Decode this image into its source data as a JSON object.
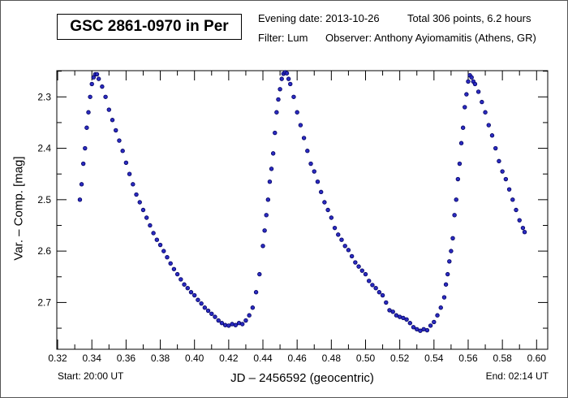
{
  "header": {
    "title": "GSC 2861-0970 in Per",
    "evening_date": "Evening date: 2013-10-26",
    "total": "Total 306 points, 6.2 hours",
    "filter": "Filter: Lum",
    "observer": "Observer: Anthony Ayiomamitis (Athens, GR)"
  },
  "footer": {
    "start": "Start: 20:00 UT",
    "end": "End: 02:14 UT"
  },
  "colors": {
    "point_fill": "#2b2bc0",
    "point_stroke": "#000060",
    "axis": "#000000"
  },
  "chart_data": {
    "type": "scatter",
    "title": "GSC 2861-0970 in Per",
    "xlabel": "JD – 2456592  (geocentric)",
    "ylabel": "Var. – Comp. [mag]",
    "xlim": [
      0.3195,
      0.6065
    ],
    "ylim": [
      2.249,
      2.791
    ],
    "y_inverted": true,
    "grid": false,
    "xticks": [
      "0.32",
      "0.34",
      "0.36",
      "0.38",
      "0.40",
      "0.42",
      "0.44",
      "0.46",
      "0.48",
      "0.50",
      "0.52",
      "0.54",
      "0.56",
      "0.58",
      "0.60"
    ],
    "yticks": [
      "2.3",
      "2.4",
      "2.5",
      "2.6",
      "2.7"
    ],
    "x": [
      0.333,
      0.334,
      0.335,
      0.336,
      0.337,
      0.338,
      0.339,
      0.34,
      0.341,
      0.342,
      0.343,
      0.344,
      0.346,
      0.348,
      0.35,
      0.352,
      0.354,
      0.356,
      0.358,
      0.36,
      0.362,
      0.364,
      0.366,
      0.368,
      0.37,
      0.372,
      0.374,
      0.376,
      0.378,
      0.38,
      0.382,
      0.384,
      0.386,
      0.388,
      0.39,
      0.392,
      0.394,
      0.396,
      0.398,
      0.4,
      0.402,
      0.404,
      0.406,
      0.408,
      0.41,
      0.412,
      0.414,
      0.416,
      0.418,
      0.42,
      0.422,
      0.424,
      0.426,
      0.428,
      0.43,
      0.432,
      0.434,
      0.436,
      0.438,
      0.44,
      0.441,
      0.442,
      0.443,
      0.444,
      0.445,
      0.446,
      0.447,
      0.448,
      0.449,
      0.45,
      0.451,
      0.452,
      0.453,
      0.454,
      0.455,
      0.456,
      0.458,
      0.46,
      0.462,
      0.464,
      0.466,
      0.468,
      0.47,
      0.472,
      0.474,
      0.476,
      0.478,
      0.48,
      0.482,
      0.484,
      0.486,
      0.488,
      0.49,
      0.492,
      0.494,
      0.496,
      0.498,
      0.5,
      0.502,
      0.504,
      0.506,
      0.508,
      0.51,
      0.512,
      0.514,
      0.516,
      0.518,
      0.52,
      0.522,
      0.524,
      0.526,
      0.528,
      0.53,
      0.532,
      0.534,
      0.536,
      0.538,
      0.54,
      0.542,
      0.544,
      0.546,
      0.547,
      0.548,
      0.549,
      0.55,
      0.551,
      0.552,
      0.553,
      0.554,
      0.555,
      0.556,
      0.557,
      0.558,
      0.559,
      0.56,
      0.561,
      0.562,
      0.563,
      0.564,
      0.566,
      0.568,
      0.57,
      0.572,
      0.574,
      0.576,
      0.578,
      0.58,
      0.582,
      0.584,
      0.586,
      0.588,
      0.59,
      0.592,
      0.593
    ],
    "y": [
      2.5,
      2.47,
      2.43,
      2.4,
      2.36,
      2.33,
      2.3,
      2.275,
      2.262,
      2.256,
      2.256,
      2.265,
      2.28,
      2.3,
      2.325,
      2.345,
      2.365,
      2.385,
      2.405,
      2.428,
      2.45,
      2.47,
      2.49,
      2.505,
      2.52,
      2.535,
      2.55,
      2.565,
      2.578,
      2.588,
      2.6,
      2.612,
      2.624,
      2.635,
      2.645,
      2.655,
      2.665,
      2.672,
      2.68,
      2.686,
      2.695,
      2.702,
      2.71,
      2.716,
      2.722,
      2.728,
      2.735,
      2.74,
      2.744,
      2.745,
      2.742,
      2.744,
      2.74,
      2.742,
      2.735,
      2.725,
      2.71,
      2.68,
      2.645,
      2.59,
      2.56,
      2.53,
      2.5,
      2.465,
      2.44,
      2.41,
      2.37,
      2.33,
      2.305,
      2.285,
      2.265,
      2.255,
      2.252,
      2.254,
      2.265,
      2.275,
      2.3,
      2.33,
      2.355,
      2.38,
      2.405,
      2.43,
      2.445,
      2.465,
      2.485,
      2.505,
      2.52,
      2.535,
      2.555,
      2.568,
      2.578,
      2.59,
      2.598,
      2.61,
      2.622,
      2.63,
      2.638,
      2.645,
      2.658,
      2.666,
      2.672,
      2.68,
      2.686,
      2.7,
      2.715,
      2.718,
      2.725,
      2.728,
      2.73,
      2.733,
      2.74,
      2.748,
      2.752,
      2.755,
      2.752,
      2.754,
      2.745,
      2.738,
      2.725,
      2.71,
      2.69,
      2.665,
      2.645,
      2.62,
      2.6,
      2.575,
      2.53,
      2.5,
      2.46,
      2.43,
      2.39,
      2.36,
      2.32,
      2.295,
      2.27,
      2.258,
      2.262,
      2.27,
      2.275,
      2.29,
      2.31,
      2.33,
      2.355,
      2.375,
      2.4,
      2.425,
      2.445,
      2.46,
      2.48,
      2.5,
      2.52,
      2.54,
      2.555,
      2.563
    ]
  }
}
